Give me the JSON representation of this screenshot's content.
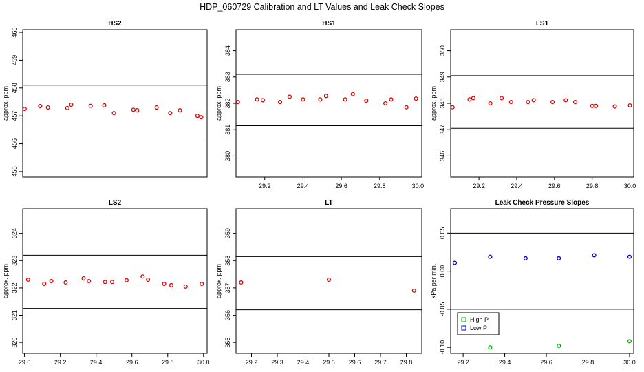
{
  "figure": {
    "title": "HDP_060729  Calibration and LT Values and Leak Check Slopes"
  },
  "chart_data": [
    {
      "type": "scatter",
      "title": "HS2",
      "ylabel": "approx. ppm",
      "xlim": [
        29.07,
        30.02
      ],
      "ylim": [
        454.8,
        460.1
      ],
      "xticks": [],
      "yticks": [
        455,
        456,
        457,
        458,
        459,
        460
      ],
      "hlines": [
        458.1,
        456.1
      ],
      "series": [
        {
          "color": "#e00000",
          "x": [
            29.08,
            29.16,
            29.2,
            29.3,
            29.32,
            29.42,
            29.49,
            29.54,
            29.64,
            29.66,
            29.76,
            29.83,
            29.88,
            29.97,
            29.99
          ],
          "y": [
            457.25,
            457.35,
            457.3,
            457.28,
            457.4,
            457.36,
            457.38,
            457.1,
            457.22,
            457.2,
            457.3,
            457.1,
            457.2,
            457.0,
            456.95
          ]
        }
      ]
    },
    {
      "type": "scatter",
      "title": "HS1",
      "ylabel": "approx. ppm",
      "xlim": [
        29.05,
        30.02
      ],
      "ylim": [
        379.2,
        384.8
      ],
      "xticks": [
        29.2,
        29.4,
        29.6,
        29.8,
        30.0
      ],
      "yticks": [
        380,
        381,
        382,
        383,
        384
      ],
      "hlines": [
        383.1,
        381.15
      ],
      "series": [
        {
          "color": "#e00000",
          "x": [
            29.06,
            29.16,
            29.19,
            29.28,
            29.33,
            29.4,
            29.49,
            29.52,
            29.62,
            29.66,
            29.73,
            29.83,
            29.86,
            29.94,
            29.99
          ],
          "y": [
            382.05,
            382.15,
            382.12,
            382.05,
            382.25,
            382.15,
            382.15,
            382.28,
            382.15,
            382.35,
            382.1,
            382.0,
            382.15,
            381.85,
            382.18
          ]
        }
      ]
    },
    {
      "type": "scatter",
      "title": "LS1",
      "ylabel": "approx. ppm",
      "xlim": [
        29.05,
        30.02
      ],
      "ylim": [
        345.2,
        350.8
      ],
      "xticks": [
        29.2,
        29.4,
        29.6,
        29.8,
        30.0
      ],
      "yticks": [
        346,
        347,
        348,
        349,
        350
      ],
      "hlines": [
        349.05,
        347.05
      ],
      "series": [
        {
          "color": "#e00000",
          "x": [
            29.06,
            29.15,
            29.17,
            29.26,
            29.32,
            29.37,
            29.46,
            29.49,
            29.59,
            29.66,
            29.71,
            29.8,
            29.82,
            29.92,
            30.0
          ],
          "y": [
            347.85,
            348.15,
            348.2,
            348.0,
            348.2,
            348.05,
            348.05,
            348.12,
            348.05,
            348.12,
            348.05,
            347.9,
            347.9,
            347.88,
            347.92
          ]
        }
      ]
    },
    {
      "type": "scatter",
      "title": "LS2",
      "ylabel": "approx. ppm",
      "xlim": [
        28.99,
        30.02
      ],
      "ylim": [
        319.6,
        324.9
      ],
      "xticks": [
        29.0,
        29.2,
        29.4,
        29.6,
        29.8,
        30.0
      ],
      "yticks": [
        320,
        321,
        322,
        323,
        324
      ],
      "hlines": [
        323.2,
        321.25
      ],
      "series": [
        {
          "color": "#e00000",
          "x": [
            29.02,
            29.11,
            29.15,
            29.23,
            29.33,
            29.36,
            29.45,
            29.49,
            29.57,
            29.66,
            29.69,
            29.78,
            29.82,
            29.9,
            29.99
          ],
          "y": [
            322.3,
            322.15,
            322.25,
            322.2,
            322.35,
            322.25,
            322.22,
            322.22,
            322.28,
            322.42,
            322.3,
            322.15,
            322.1,
            322.05,
            322.15
          ]
        }
      ]
    },
    {
      "type": "scatter",
      "title": "LT",
      "ylabel": "approx. ppm",
      "xlim": [
        29.14,
        29.86
      ],
      "ylim": [
        354.6,
        359.9
      ],
      "xticks": [
        29.2,
        29.3,
        29.4,
        29.5,
        29.6,
        29.7,
        29.8
      ],
      "yticks": [
        355,
        356,
        357,
        358,
        359
      ],
      "hlines": [
        358.15,
        356.2
      ],
      "series": [
        {
          "color": "#e00000",
          "x": [
            29.16,
            29.5,
            29.83
          ],
          "y": [
            357.2,
            357.3,
            356.9
          ]
        }
      ]
    },
    {
      "type": "scatter",
      "title": "Leak Check Pressure Slopes",
      "ylabel": "kPa per min.",
      "xlim": [
        29.14,
        30.02
      ],
      "ylim": [
        -0.108,
        0.082
      ],
      "xticks": [
        29.2,
        29.4,
        29.6,
        29.8,
        30.0
      ],
      "yticks": [
        -0.1,
        -0.05,
        0.0,
        0.05
      ],
      "ytick_labels": [
        "-0.10",
        "-0.05",
        "0.00",
        "0.05"
      ],
      "hlines": [
        0.05,
        -0.05
      ],
      "legend": {
        "position": "bottom-left",
        "entries": [
          {
            "label": "High P",
            "color": "#00b000"
          },
          {
            "label": "Low P",
            "color": "#0000c8"
          }
        ]
      },
      "series": [
        {
          "name": "High P",
          "color": "#00b000",
          "x": [
            29.33,
            29.66,
            30.0
          ],
          "y": [
            -0.1,
            -0.098,
            -0.092
          ]
        },
        {
          "name": "Low P",
          "color": "#0000c8",
          "x": [
            29.16,
            29.33,
            29.5,
            29.66,
            29.83,
            30.0
          ],
          "y": [
            0.011,
            0.019,
            0.017,
            0.017,
            0.021,
            0.019
          ]
        }
      ]
    }
  ]
}
